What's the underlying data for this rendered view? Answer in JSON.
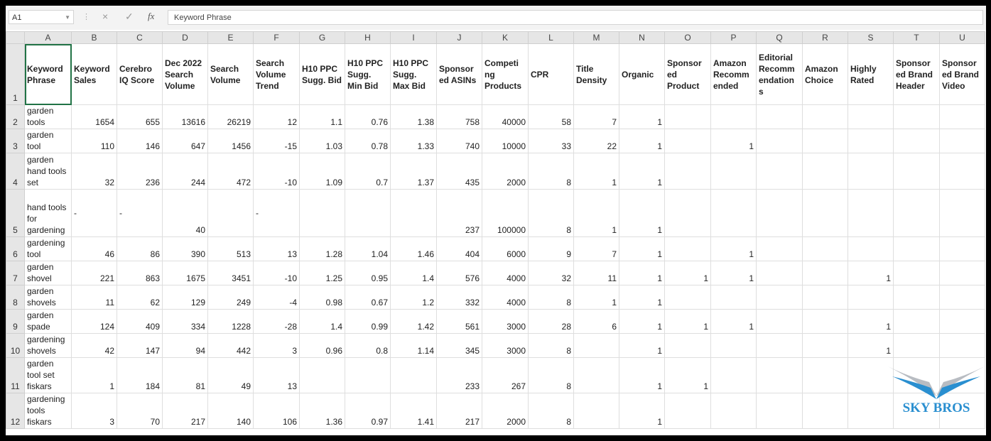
{
  "formula_bar": {
    "name_box": "A1",
    "fx_label": "fx",
    "cancel_icon": "×",
    "enter_icon": "✓",
    "formula": "Keyword Phrase"
  },
  "columns": [
    "A",
    "B",
    "C",
    "D",
    "E",
    "F",
    "G",
    "H",
    "I",
    "J",
    "K",
    "L",
    "M",
    "N",
    "O",
    "P",
    "Q",
    "R",
    "S",
    "T",
    "U"
  ],
  "headers": [
    "Keyword Phrase",
    "Keyword Sales",
    "Cerebro IQ Score",
    "Dec 2022 Search Volume",
    "Search Volume",
    "Search Volume Trend",
    "H10 PPC Sugg. Bid",
    "H10 PPC Sugg. Min Bid",
    "H10 PPC Sugg. Max Bid",
    "Sponsored ASINs",
    "Competing Products",
    "CPR",
    "Title Density",
    "Organic",
    "Sponsored Product",
    "Amazon Recommended",
    "Editorial Recommendations",
    "Amazon Choice",
    "Highly Rated",
    "Sponsored Brand Header",
    "Sponsored Brand Video"
  ],
  "headers_display": [
    "Keyword Phrase",
    "Keyword Sales",
    "Cerebro IQ Score",
    "Dec 2022 Search Volume",
    "Search Volume",
    "Search Volume Trend",
    "H10 PPC Sugg. Bid",
    "H10 PPC Sugg. Min Bid",
    "H10 PPC Sugg. Max Bid",
    "Sponsor ed ASINs",
    "Competi ng Products",
    "CPR",
    "Title Density",
    "Organic",
    "Sponsor ed Product",
    "Amazon Recomm ended",
    "Editorial Recomm endation s",
    "Amazon Choice",
    "Highly Rated",
    "Sponsor ed Brand Header",
    "Sponsor ed Brand Video"
  ],
  "rows": [
    [
      "garden tools",
      "1654",
      "655",
      "13616",
      "26219",
      "12",
      "1.1",
      "0.76",
      "1.38",
      "758",
      "40000",
      "58",
      "7",
      "1",
      "",
      "",
      "",
      "",
      "",
      "",
      ""
    ],
    [
      "garden tool",
      "110",
      "146",
      "647",
      "1456",
      "-15",
      "1.03",
      "0.78",
      "1.33",
      "740",
      "10000",
      "33",
      "22",
      "1",
      "",
      "1",
      "",
      "",
      "",
      "",
      ""
    ],
    [
      "garden hand tools set",
      "32",
      "236",
      "244",
      "472",
      "-10",
      "1.09",
      "0.7",
      "1.37",
      "435",
      "2000",
      "8",
      "1",
      "1",
      "",
      "",
      "",
      "",
      "",
      "",
      ""
    ],
    [
      "hand tools for gardening",
      "-",
      "-",
      "40",
      "",
      "-",
      "",
      "",
      "",
      "237",
      "100000",
      "8",
      "1",
      "1",
      "",
      "",
      "",
      "",
      "",
      "",
      ""
    ],
    [
      "gardening tool",
      "46",
      "86",
      "390",
      "513",
      "13",
      "1.28",
      "1.04",
      "1.46",
      "404",
      "6000",
      "9",
      "7",
      "1",
      "",
      "1",
      "",
      "",
      "",
      "",
      ""
    ],
    [
      "garden shovel",
      "221",
      "863",
      "1675",
      "3451",
      "-10",
      "1.25",
      "0.95",
      "1.4",
      "576",
      "4000",
      "32",
      "11",
      "1",
      "1",
      "1",
      "",
      "",
      "1",
      "",
      ""
    ],
    [
      "garden shovels",
      "11",
      "62",
      "129",
      "249",
      "-4",
      "0.98",
      "0.67",
      "1.2",
      "332",
      "4000",
      "8",
      "1",
      "1",
      "",
      "",
      "",
      "",
      "",
      "",
      ""
    ],
    [
      "garden spade",
      "124",
      "409",
      "334",
      "1228",
      "-28",
      "1.4",
      "0.99",
      "1.42",
      "561",
      "3000",
      "28",
      "6",
      "1",
      "1",
      "1",
      "",
      "",
      "1",
      "",
      ""
    ],
    [
      "gardening shovels",
      "42",
      "147",
      "94",
      "442",
      "3",
      "0.96",
      "0.8",
      "1.14",
      "345",
      "3000",
      "8",
      "",
      "1",
      "",
      "",
      "",
      "",
      "1",
      "",
      ""
    ],
    [
      "garden tool set fiskars",
      "1",
      "184",
      "81",
      "49",
      "13",
      "",
      "",
      "",
      "233",
      "267",
      "8",
      "",
      "1",
      "1",
      "",
      "",
      "",
      "",
      "",
      ""
    ],
    [
      "gardening tools fiskars",
      "3",
      "70",
      "217",
      "140",
      "106",
      "1.36",
      "0.97",
      "1.41",
      "217",
      "2000",
      "8",
      "",
      "1",
      "",
      "",
      "",
      "",
      "",
      "",
      ""
    ]
  ],
  "logo": {
    "text": "SKY BROS",
    "colors": {
      "blue": "#2a8fd0",
      "gray": "#b8bcc2"
    }
  },
  "colors": {
    "selection": "#217346",
    "header_bg": "#e6e6e6",
    "grid": "#dedede"
  }
}
